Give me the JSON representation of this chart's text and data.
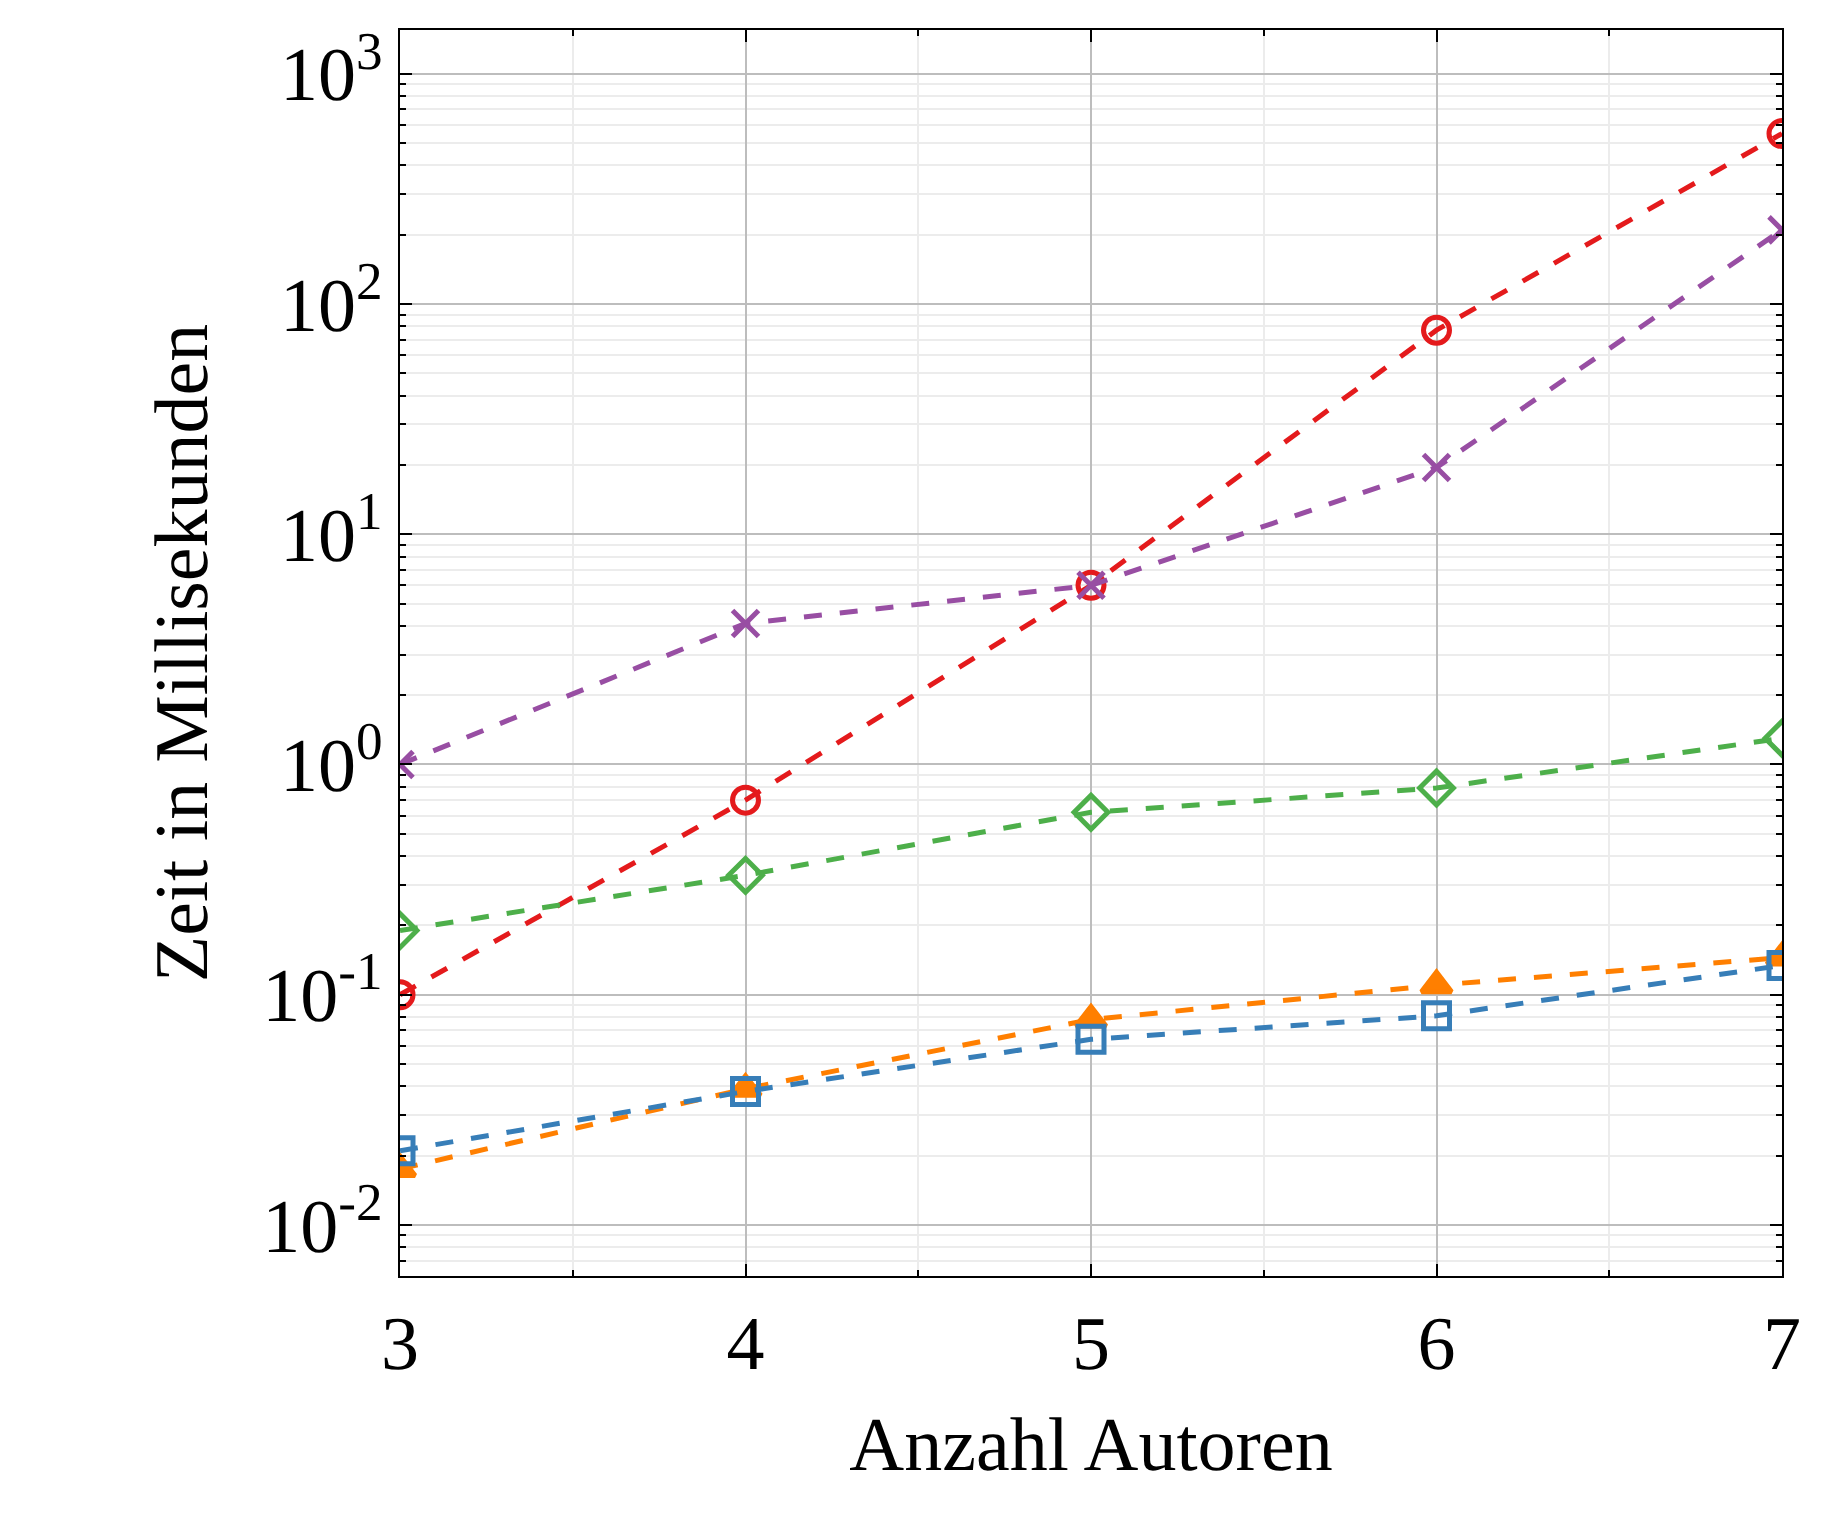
{
  "chart_data": {
    "type": "line",
    "xlabel": "Anzahl Autoren",
    "ylabel": "Zeit in Millisekunden",
    "x": [
      3,
      4,
      5,
      6,
      7
    ],
    "series": [
      {
        "color": "#e41a1c",
        "marker": "circle",
        "values": [
          0.1,
          0.7,
          6,
          77,
          550
        ]
      },
      {
        "color": "#984ea3",
        "marker": "cross",
        "values": [
          1.0,
          4.1,
          6,
          19.5,
          210
        ]
      },
      {
        "color": "#4daf4a",
        "marker": "diamond",
        "values": [
          0.19,
          0.33,
          0.62,
          0.79,
          1.3
        ]
      },
      {
        "color": "#ff7f00",
        "marker": "triangle",
        "values": [
          0.0175,
          0.039,
          0.078,
          0.11,
          0.145
        ]
      },
      {
        "color": "#377eb8",
        "marker": "square",
        "values": [
          0.021,
          0.038,
          0.064,
          0.081,
          0.134
        ]
      }
    ],
    "log": "y",
    "grid": true,
    "line_style": "dashed",
    "xlim": [
      3,
      7
    ],
    "xticks": [
      3,
      4,
      5,
      6,
      7
    ],
    "ylim": [
      0.006,
      1550
    ],
    "yticks": [
      {
        "value": 0.01,
        "label": "10$^{-2}$"
      },
      {
        "value": 0.1,
        "label": "10$^{-1}$"
      },
      {
        "value": 1,
        "label": "10$^{0}$"
      },
      {
        "value": 10,
        "label": "10$^{1}$"
      },
      {
        "value": 100,
        "label": "10$^{2}$"
      },
      {
        "value": 1000,
        "label": "10$^{3}$"
      }
    ]
  }
}
